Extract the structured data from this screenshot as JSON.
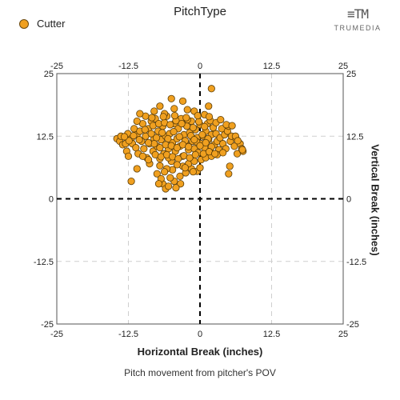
{
  "chart_data": {
    "type": "scatter",
    "title": "PitchType",
    "xlabel": "Horizontal Break (inches)",
    "ylabel": "Vertical Break (inches)",
    "caption": "Pitch movement from pitcher's POV",
    "xlim": [
      -25,
      25
    ],
    "ylim": [
      -25,
      25
    ],
    "x_ticks": [
      "-25",
      "-12.5",
      "0",
      "12.5",
      "25"
    ],
    "y_ticks": [
      "25",
      "12.5",
      "0",
      "-12.5",
      "-25"
    ],
    "grid": true,
    "legend_placement": "top-left",
    "series": [
      {
        "name": "Cutter",
        "color": "#f0a020",
        "points": [
          [
            -14.5,
            12.0
          ],
          [
            -14.0,
            11.5
          ],
          [
            -13.5,
            10.8
          ],
          [
            -13.8,
            12.5
          ],
          [
            -13.0,
            11.0
          ],
          [
            -12.8,
            9.5
          ],
          [
            -12.5,
            8.5
          ],
          [
            -12.6,
            13.0
          ],
          [
            -12.0,
            12.0
          ],
          [
            -11.8,
            11.0
          ],
          [
            -11.5,
            14.0
          ],
          [
            -11.2,
            10.2
          ],
          [
            -11.0,
            12.8
          ],
          [
            -10.8,
            9.0
          ],
          [
            -10.5,
            13.5
          ],
          [
            -10.2,
            11.5
          ],
          [
            -10.0,
            15.0
          ],
          [
            -9.8,
            10.0
          ],
          [
            -9.5,
            12.5
          ],
          [
            -9.3,
            8.2
          ],
          [
            -9.0,
            14.0
          ],
          [
            -8.8,
            11.0
          ],
          [
            -8.5,
            15.5
          ],
          [
            -8.2,
            9.5
          ],
          [
            -8.0,
            12.0
          ],
          [
            -7.8,
            16.0
          ],
          [
            -7.5,
            10.5
          ],
          [
            -7.3,
            13.5
          ],
          [
            -7.0,
            8.0
          ],
          [
            -6.8,
            11.8
          ],
          [
            -6.5,
            14.5
          ],
          [
            -6.3,
            9.0
          ],
          [
            -6.0,
            12.5
          ],
          [
            -5.8,
            16.5
          ],
          [
            -5.5,
            10.0
          ],
          [
            -5.3,
            13.0
          ],
          [
            -5.0,
            7.5
          ],
          [
            -4.8,
            11.2
          ],
          [
            -4.5,
            15.0
          ],
          [
            -4.3,
            9.5
          ],
          [
            -4.0,
            12.0
          ],
          [
            -3.8,
            14.0
          ],
          [
            -3.5,
            10.5
          ],
          [
            -3.3,
            16.0
          ],
          [
            -3.0,
            8.5
          ],
          [
            -2.8,
            12.8
          ],
          [
            -2.5,
            11.0
          ],
          [
            -2.3,
            14.5
          ],
          [
            -2.0,
            9.8
          ],
          [
            -1.8,
            13.2
          ],
          [
            -1.5,
            15.5
          ],
          [
            -1.3,
            11.5
          ],
          [
            -1.0,
            10.0
          ],
          [
            -0.8,
            13.8
          ],
          [
            -0.5,
            12.2
          ],
          [
            -0.3,
            9.2
          ],
          [
            0.0,
            14.8
          ],
          [
            0.2,
            11.0
          ],
          [
            0.5,
            12.5
          ],
          [
            0.8,
            10.2
          ],
          [
            1.0,
            13.5
          ],
          [
            1.3,
            15.0
          ],
          [
            1.5,
            11.8
          ],
          [
            1.8,
            9.5
          ],
          [
            2.0,
            12.8
          ],
          [
            2.3,
            14.2
          ],
          [
            2.5,
            10.8
          ],
          [
            2.8,
            13.0
          ],
          [
            3.0,
            11.5
          ],
          [
            3.3,
            9.8
          ],
          [
            3.5,
            12.2
          ],
          [
            3.8,
            14.0
          ],
          [
            4.0,
            11.0
          ],
          [
            4.3,
            12.8
          ],
          [
            4.5,
            10.0
          ],
          [
            4.8,
            13.5
          ],
          [
            5.0,
            14.5
          ],
          [
            5.3,
            11.5
          ],
          [
            5.5,
            12.5
          ],
          [
            6.0,
            10.5
          ],
          [
            6.3,
            12.0
          ],
          [
            6.5,
            9.0
          ],
          [
            7.0,
            11.0
          ],
          [
            7.5,
            9.5
          ],
          [
            7.3,
            10.0
          ],
          [
            6.2,
            12.5
          ],
          [
            2.0,
            22.0
          ],
          [
            -5.0,
            20.0
          ],
          [
            -3.0,
            19.5
          ],
          [
            -7.0,
            18.5
          ],
          [
            -4.5,
            18.0
          ],
          [
            1.5,
            18.5
          ],
          [
            -1.0,
            17.5
          ],
          [
            -8.0,
            17.5
          ],
          [
            -6.2,
            17.0
          ],
          [
            -2.2,
            17.8
          ],
          [
            -9.5,
            16.5
          ],
          [
            -11.0,
            15.5
          ],
          [
            -10.5,
            17.0
          ],
          [
            0.8,
            16.8
          ],
          [
            -8.8,
            7.0
          ],
          [
            -11.0,
            6.0
          ],
          [
            -12.0,
            3.5
          ],
          [
            -7.5,
            5.0
          ],
          [
            -6.5,
            3.0
          ],
          [
            -6.0,
            2.0
          ],
          [
            -5.5,
            2.5
          ],
          [
            -4.5,
            3.5
          ],
          [
            -3.5,
            4.5
          ],
          [
            -2.5,
            5.2
          ],
          [
            -1.5,
            6.0
          ],
          [
            -0.5,
            5.5
          ],
          [
            -9.0,
            7.8
          ],
          [
            -10.0,
            8.5
          ],
          [
            5.0,
            5.0
          ],
          [
            5.2,
            6.5
          ],
          [
            -6.8,
            4.0
          ],
          [
            -7.2,
            3.0
          ],
          [
            -4.8,
            5.8
          ],
          [
            -3.0,
            6.5
          ],
          [
            -2.0,
            7.0
          ],
          [
            -1.0,
            7.5
          ],
          [
            0.2,
            7.8
          ],
          [
            1.0,
            8.2
          ],
          [
            2.0,
            8.5
          ],
          [
            3.0,
            8.8
          ],
          [
            4.0,
            9.2
          ],
          [
            -5.5,
            8.2
          ],
          [
            -8.5,
            13.0
          ],
          [
            -7.6,
            12.2
          ],
          [
            -6.6,
            13.2
          ],
          [
            -5.6,
            12.0
          ],
          [
            -4.6,
            13.4
          ],
          [
            -3.6,
            12.4
          ],
          [
            -2.6,
            11.6
          ],
          [
            -1.6,
            12.6
          ],
          [
            -0.6,
            11.4
          ],
          [
            0.4,
            12.8
          ],
          [
            1.4,
            12.0
          ],
          [
            -8.0,
            11.0
          ],
          [
            -7.0,
            10.2
          ],
          [
            -6.0,
            10.8
          ],
          [
            -5.0,
            10.6
          ],
          [
            -4.0,
            10.2
          ],
          [
            -3.0,
            10.8
          ],
          [
            -2.0,
            10.4
          ],
          [
            -1.0,
            11.8
          ],
          [
            0.0,
            10.6
          ],
          [
            1.0,
            11.2
          ],
          [
            2.0,
            10.4
          ],
          [
            -9.0,
            11.2
          ],
          [
            -8.2,
            14.6
          ],
          [
            -7.2,
            15.0
          ],
          [
            -6.2,
            15.2
          ],
          [
            -5.2,
            14.8
          ],
          [
            -4.2,
            15.6
          ],
          [
            -3.2,
            15.0
          ],
          [
            -2.2,
            15.8
          ],
          [
            -1.2,
            14.2
          ],
          [
            -0.2,
            15.4
          ],
          [
            0.8,
            14.4
          ],
          [
            1.8,
            15.6
          ],
          [
            2.8,
            15.2
          ],
          [
            -7.8,
            8.8
          ],
          [
            -6.8,
            8.4
          ],
          [
            -5.8,
            8.8
          ],
          [
            -4.8,
            8.4
          ],
          [
            -3.8,
            8.0
          ],
          [
            -2.8,
            8.6
          ],
          [
            -1.8,
            8.2
          ],
          [
            -0.8,
            8.8
          ],
          [
            0.6,
            9.0
          ],
          [
            1.6,
            9.4
          ],
          [
            2.6,
            9.0
          ],
          [
            -9.6,
            13.8
          ],
          [
            -10.6,
            11.8
          ],
          [
            -11.6,
            12.6
          ],
          [
            -12.4,
            11.6
          ],
          [
            -13.2,
            12.4
          ],
          [
            -8.4,
            16.2
          ],
          [
            -6.4,
            16.4
          ],
          [
            -4.4,
            16.6
          ],
          [
            -2.4,
            16.2
          ],
          [
            -0.4,
            16.6
          ],
          [
            1.6,
            16.4
          ],
          [
            3.6,
            15.8
          ],
          [
            4.6,
            14.8
          ],
          [
            5.6,
            14.6
          ],
          [
            6.6,
            11.6
          ],
          [
            7.4,
            9.8
          ],
          [
            -4.0,
            6.8
          ],
          [
            -2.6,
            6.2
          ],
          [
            -1.2,
            5.4
          ],
          [
            0.0,
            6.2
          ],
          [
            -5.8,
            6.0
          ],
          [
            -7.0,
            6.6
          ],
          [
            -3.4,
            3.0
          ],
          [
            -4.2,
            2.2
          ],
          [
            -5.2,
            4.2
          ],
          [
            -6.2,
            5.4
          ]
        ]
      }
    ]
  },
  "legend": {
    "label": "Cutter"
  },
  "logo": {
    "text": "TRUMEDIA"
  }
}
